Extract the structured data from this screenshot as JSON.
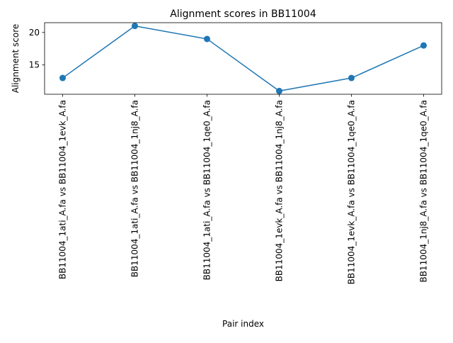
{
  "chart_data": {
    "type": "line",
    "title": "Alignment scores in BB11004",
    "xlabel": "Pair index",
    "ylabel": "Alignment score",
    "categories": [
      "BB11004_1ati_A.fa vs BB11004_1evk_A.fa",
      "BB11004_1ati_A.fa vs BB11004_1nj8_A.fa",
      "BB11004_1ati_A.fa vs BB11004_1qe0_A.fa",
      "BB11004_1evk_A.fa vs BB11004_1nj8_A.fa",
      "BB11004_1evk_A.fa vs BB11004_1qe0_A.fa",
      "BB11004_1nj8_A.fa vs BB11004_1qe0_A.fa"
    ],
    "series": [
      {
        "values": [
          13,
          21,
          19,
          11,
          13,
          18
        ],
        "color": "#1f77b4",
        "marker": "circle"
      }
    ],
    "ylim": [
      10.5,
      21.5
    ],
    "yticks": [
      15,
      20
    ],
    "grid": false,
    "legend": "none"
  }
}
